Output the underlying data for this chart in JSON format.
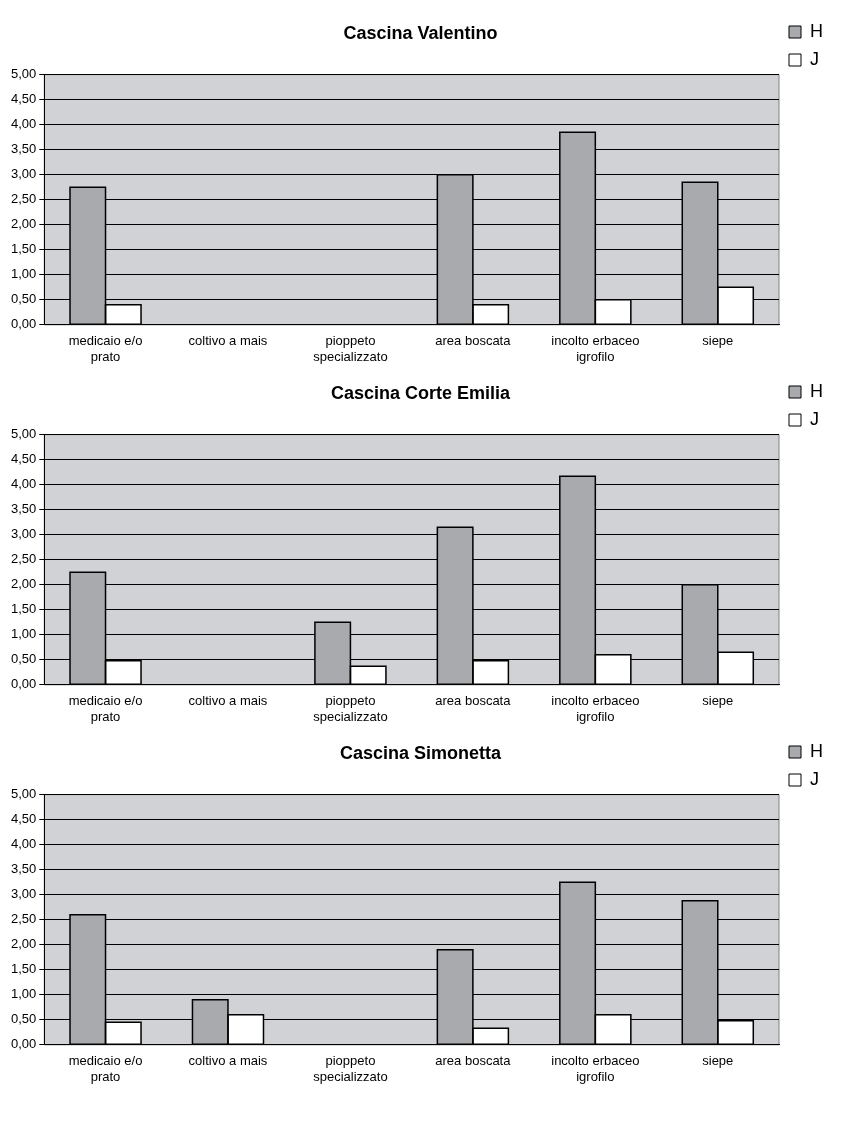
{
  "chart_data": [
    {
      "type": "bar",
      "title": "Cascina Valentino",
      "categories": [
        "medicaio e/o prato",
        "coltivo a mais",
        "pioppeto specializzato",
        "area boscata",
        "incolto erbaceo igrofilo",
        "siepe"
      ],
      "series": [
        {
          "name": "H",
          "color": "#a9aaae",
          "values": [
            2.75,
            null,
            null,
            3.0,
            3.85,
            2.85
          ]
        },
        {
          "name": "J",
          "color": "#ffffff",
          "values": [
            0.4,
            null,
            null,
            0.4,
            0.5,
            0.75
          ]
        }
      ],
      "ylim": [
        0,
        5
      ],
      "yticks": [
        {
          "value": 0,
          "label": "0,00"
        },
        {
          "value": 0.5,
          "label": "0,50"
        },
        {
          "value": 1,
          "label": "1,00"
        },
        {
          "value": 1.5,
          "label": "1,50"
        },
        {
          "value": 2,
          "label": "2,00"
        },
        {
          "value": 2.5,
          "label": "2,50"
        },
        {
          "value": 3,
          "label": "3,00"
        },
        {
          "value": 3.5,
          "label": "3,50"
        },
        {
          "value": 4,
          "label": "4,00"
        },
        {
          "value": 4.5,
          "label": "4,50"
        },
        {
          "value": 5,
          "label": "5,00"
        }
      ],
      "grid": "y",
      "legend": "top right"
    },
    {
      "type": "bar",
      "title": "Cascina Corte Emilia",
      "categories": [
        "medicaio e/o prato",
        "coltivo a mais",
        "pioppeto specializzato",
        "area boscata",
        "incolto erbaceo igrofilo",
        "siepe"
      ],
      "series": [
        {
          "name": "H",
          "color": "#a9aaae",
          "values": [
            2.25,
            null,
            1.25,
            3.15,
            4.17,
            2.0
          ]
        },
        {
          "name": "J",
          "color": "#ffffff",
          "values": [
            0.48,
            null,
            0.37,
            0.48,
            0.6,
            0.65
          ]
        }
      ],
      "ylim": [
        0,
        5
      ],
      "yticks": [
        {
          "value": 0,
          "label": "0,00"
        },
        {
          "value": 0.5,
          "label": "0,50"
        },
        {
          "value": 1,
          "label": "1,00"
        },
        {
          "value": 1.5,
          "label": "1,50"
        },
        {
          "value": 2,
          "label": "2,00"
        },
        {
          "value": 2.5,
          "label": "2,50"
        },
        {
          "value": 3,
          "label": "3,00"
        },
        {
          "value": 3.5,
          "label": "3,50"
        },
        {
          "value": 4,
          "label": "4,00"
        },
        {
          "value": 4.5,
          "label": "4,50"
        },
        {
          "value": 5,
          "label": "5,00"
        }
      ],
      "grid": "y",
      "legend": "top right"
    },
    {
      "type": "bar",
      "title": "Cascina Simonetta",
      "categories": [
        "medicaio e/o prato",
        "coltivo a mais",
        "pioppeto specializzato",
        "area boscata",
        "incolto erbaceo igrofilo",
        "siepe"
      ],
      "series": [
        {
          "name": "H",
          "color": "#a9aaae",
          "values": [
            2.6,
            0.9,
            null,
            1.9,
            3.25,
            2.88
          ]
        },
        {
          "name": "J",
          "color": "#ffffff",
          "values": [
            0.45,
            0.6,
            null,
            0.33,
            0.6,
            0.48
          ]
        }
      ],
      "ylim": [
        0,
        5
      ],
      "yticks": [
        {
          "value": 0,
          "label": "0,00"
        },
        {
          "value": 0.5,
          "label": "0,50"
        },
        {
          "value": 1,
          "label": "1,00"
        },
        {
          "value": 1.5,
          "label": "1,50"
        },
        {
          "value": 2,
          "label": "2,00"
        },
        {
          "value": 2.5,
          "label": "2,50"
        },
        {
          "value": 3,
          "label": "3,00"
        },
        {
          "value": 3.5,
          "label": "3,50"
        },
        {
          "value": 4,
          "label": "4,00"
        },
        {
          "value": 4.5,
          "label": "4,50"
        },
        {
          "value": 5,
          "label": "5,00"
        }
      ],
      "grid": "y",
      "legend": "top right"
    }
  ]
}
